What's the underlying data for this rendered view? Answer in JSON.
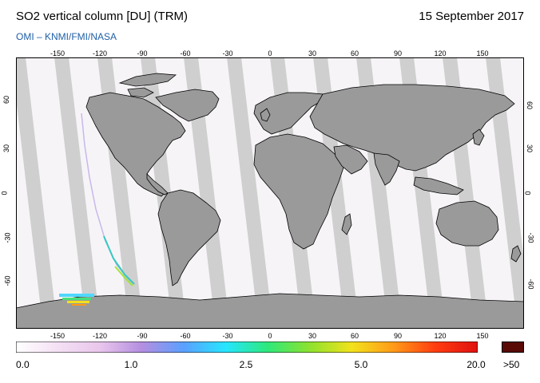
{
  "header": {
    "title": "SO2 vertical column [DU] (TRM)",
    "date": "15 September 2017",
    "credit": "OMI  –  KNMI/FMI/NASA"
  },
  "map": {
    "projection": "equirectangular",
    "lon_range": [
      -180,
      180
    ],
    "lat_range": [
      -90,
      90
    ],
    "lon_ticks": [
      "-150",
      "-120",
      "-90",
      "-60",
      "-30",
      "0",
      "30",
      "60",
      "90",
      "120",
      "150"
    ],
    "lat_ticks": [
      "60",
      "30",
      "0",
      "-30",
      "-60"
    ],
    "land_color": "#9a9a9a",
    "gap_color": "#c8c8c8",
    "ocean_color": "#ffffff",
    "features": [
      "coastline-outlines",
      "orbit-swath-gaps",
      "antarctic-plume-over-south-pacific",
      "trail-south-east-pacific"
    ]
  },
  "colorbar": {
    "labels": [
      "0.0",
      "1.0",
      "2.5",
      "5.0",
      "20.0"
    ],
    "label_positions": [
      0.0,
      0.25,
      0.5,
      0.75,
      1.0
    ],
    "overflow_label": ">50",
    "colors": [
      "#ffffff",
      "#f4e0f4",
      "#e9c6ec",
      "#b48ee0",
      "#5aa0ff",
      "#26e6ff",
      "#2ee87a",
      "#8ee22e",
      "#f2e21c",
      "#ff9a18",
      "#ff3c10",
      "#e01010"
    ],
    "overflow_color": "#5a0a04"
  }
}
